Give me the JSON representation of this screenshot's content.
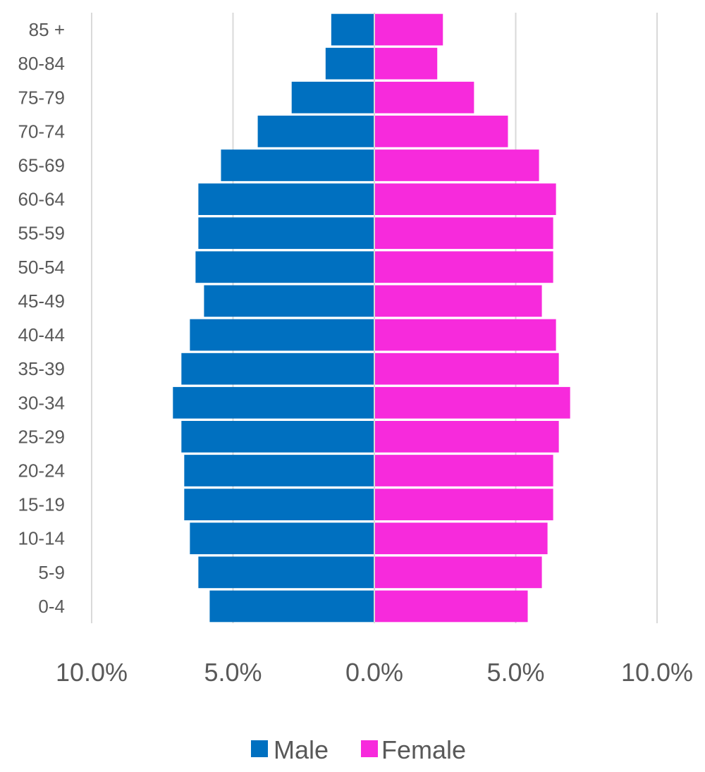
{
  "chart_data": {
    "type": "bar",
    "orientation": "horizontal",
    "subtype": "population-pyramid",
    "categories": [
      "0-4",
      "5-9",
      "10-14",
      "15-19",
      "20-24",
      "25-29",
      "30-34",
      "35-39",
      "40-44",
      "45-49",
      "50-54",
      "55-59",
      "60-64",
      "65-69",
      "70-74",
      "75-79",
      "80-84",
      "85 +"
    ],
    "series": [
      {
        "name": "Male",
        "color": "#0070C0",
        "values": [
          5.8,
          6.2,
          6.5,
          6.7,
          6.7,
          6.8,
          7.1,
          6.8,
          6.5,
          6.0,
          6.3,
          6.2,
          6.2,
          5.4,
          4.1,
          2.9,
          1.7,
          1.5
        ]
      },
      {
        "name": "Female",
        "color": "#F72ADC",
        "values": [
          5.4,
          5.9,
          6.1,
          6.3,
          6.3,
          6.5,
          6.9,
          6.5,
          6.4,
          5.9,
          6.3,
          6.3,
          6.4,
          5.8,
          4.7,
          3.5,
          2.2,
          2.4
        ]
      }
    ],
    "xlim": [
      -10,
      10
    ],
    "xticks": [
      "10.0%",
      "5.0%",
      "0.0%",
      "5.0%",
      "10.0%"
    ],
    "grid": "vertical",
    "legend": "bottom"
  }
}
